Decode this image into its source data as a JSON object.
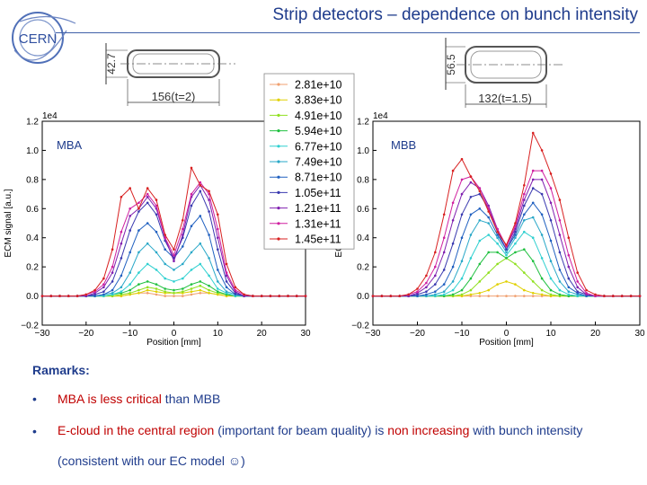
{
  "slide": {
    "title": "Strip detectors – dependence on bunch intensity",
    "logo_text": "CERN",
    "remarks_heading": "Ramarks:",
    "bullets": [
      {
        "parts": [
          {
            "t": "MBA is less critical",
            "red": true
          },
          {
            "t": " than MBB",
            "red": false
          }
        ]
      },
      {
        "parts": [
          {
            "t": "E-cloud in the central region",
            "red": true
          },
          {
            "t": " (important for beam quality) is ",
            "red": false
          },
          {
            "t": "non increasing",
            "red": true
          },
          {
            "t": " with bunch intensity (consistent with our EC model ☺)",
            "red": false
          }
        ]
      }
    ],
    "colors": {
      "title": "#1f3c8c",
      "highlight": "#c00000"
    }
  },
  "diagrams": {
    "mba": {
      "height_label": "42.7",
      "width_label": "156(t=2)"
    },
    "mbb": {
      "height_label": "56.5",
      "width_label": "132(t=1.5)"
    }
  },
  "chart_data": [
    {
      "type": "line",
      "label": "MBA",
      "scale_note": "1e4",
      "xlabel": "Position [mm]",
      "ylabel": "ECM signal [a.u.]",
      "xlim": [
        -30,
        30
      ],
      "ylim": [
        -0.2,
        1.2
      ],
      "xticks": [
        -30,
        -20,
        -10,
        0,
        10,
        20,
        30
      ],
      "yticks": [
        -0.2,
        0.0,
        0.2,
        0.4,
        0.6,
        0.8,
        1.0,
        1.2
      ],
      "legend_position": "top-right",
      "x": [
        -30,
        -28,
        -26,
        -24,
        -22,
        -20,
        -18,
        -16,
        -14,
        -12,
        -10,
        -8,
        -6,
        -4,
        -2,
        0,
        2,
        4,
        6,
        8,
        10,
        12,
        14,
        16,
        18,
        20,
        22,
        24,
        26,
        28,
        30
      ],
      "series": [
        {
          "name": "2.81e+10",
          "color": "#f0a070",
          "values": [
            0,
            0,
            0,
            0,
            0,
            0,
            0,
            0,
            0,
            0,
            0.01,
            0.02,
            0.02,
            0.01,
            0,
            0,
            0,
            0.01,
            0.02,
            0.02,
            0.01,
            0,
            0,
            0,
            0,
            0,
            0,
            0,
            0,
            0,
            0
          ]
        },
        {
          "name": "3.83e+10",
          "color": "#e0d000",
          "values": [
            0,
            0,
            0,
            0,
            0,
            0,
            0,
            0,
            0,
            0,
            0.01,
            0.02,
            0.04,
            0.03,
            0.02,
            0.02,
            0.02,
            0.03,
            0.04,
            0.02,
            0.01,
            0,
            0,
            0,
            0,
            0,
            0,
            0,
            0,
            0,
            0
          ]
        },
        {
          "name": "4.91e+10",
          "color": "#90e020",
          "values": [
            0,
            0,
            0,
            0,
            0,
            0,
            0,
            0,
            0,
            0.01,
            0.02,
            0.04,
            0.06,
            0.05,
            0.03,
            0.02,
            0.03,
            0.05,
            0.07,
            0.04,
            0.02,
            0.01,
            0,
            0,
            0,
            0,
            0,
            0,
            0,
            0,
            0
          ]
        },
        {
          "name": "5.94e+10",
          "color": "#20c040",
          "values": [
            0,
            0,
            0,
            0,
            0,
            0,
            0,
            0,
            0.01,
            0.02,
            0.04,
            0.08,
            0.1,
            0.08,
            0.05,
            0.04,
            0.05,
            0.08,
            0.1,
            0.07,
            0.03,
            0.01,
            0,
            0,
            0,
            0,
            0,
            0,
            0,
            0,
            0
          ]
        },
        {
          "name": "6.77e+10",
          "color": "#30d0d0",
          "values": [
            0,
            0,
            0,
            0,
            0,
            0,
            0,
            0,
            0.01,
            0.03,
            0.08,
            0.16,
            0.22,
            0.18,
            0.12,
            0.1,
            0.12,
            0.18,
            0.22,
            0.14,
            0.05,
            0.02,
            0,
            0,
            0,
            0,
            0,
            0,
            0,
            0,
            0
          ]
        },
        {
          "name": "7.49e+10",
          "color": "#2aa8c8",
          "values": [
            0,
            0,
            0,
            0,
            0,
            0,
            0,
            0.01,
            0.02,
            0.06,
            0.16,
            0.3,
            0.36,
            0.3,
            0.22,
            0.18,
            0.22,
            0.3,
            0.36,
            0.26,
            0.1,
            0.03,
            0.01,
            0,
            0,
            0,
            0,
            0,
            0,
            0,
            0
          ]
        },
        {
          "name": "8.71e+10",
          "color": "#2060c0",
          "values": [
            0,
            0,
            0,
            0,
            0,
            0,
            0,
            0.01,
            0.04,
            0.14,
            0.3,
            0.45,
            0.5,
            0.44,
            0.32,
            0.26,
            0.34,
            0.48,
            0.55,
            0.42,
            0.18,
            0.06,
            0.01,
            0,
            0,
            0,
            0,
            0,
            0,
            0,
            0
          ]
        },
        {
          "name": "1.05e+11",
          "color": "#3a3ab0",
          "values": [
            0,
            0,
            0,
            0,
            0,
            0,
            0.01,
            0.03,
            0.1,
            0.26,
            0.45,
            0.58,
            0.64,
            0.56,
            0.38,
            0.26,
            0.4,
            0.62,
            0.72,
            0.58,
            0.32,
            0.1,
            0.02,
            0,
            0,
            0,
            0,
            0,
            0,
            0,
            0
          ]
        },
        {
          "name": "1.21e+11",
          "color": "#8020b0",
          "values": [
            0,
            0,
            0,
            0,
            0,
            0,
            0.02,
            0.06,
            0.16,
            0.36,
            0.55,
            0.6,
            0.68,
            0.6,
            0.4,
            0.24,
            0.42,
            0.68,
            0.76,
            0.66,
            0.4,
            0.14,
            0.03,
            0,
            0,
            0,
            0,
            0,
            0,
            0,
            0
          ]
        },
        {
          "name": "1.31e+11",
          "color": "#d020a0",
          "values": [
            0,
            0,
            0,
            0,
            0,
            0.01,
            0.03,
            0.08,
            0.2,
            0.44,
            0.6,
            0.64,
            0.7,
            0.62,
            0.4,
            0.28,
            0.46,
            0.7,
            0.78,
            0.7,
            0.46,
            0.16,
            0.04,
            0.01,
            0,
            0,
            0,
            0,
            0,
            0,
            0
          ]
        },
        {
          "name": "1.45e+11",
          "color": "#d82020",
          "values": [
            0,
            0,
            0,
            0,
            0,
            0.01,
            0.04,
            0.12,
            0.32,
            0.68,
            0.74,
            0.6,
            0.74,
            0.66,
            0.42,
            0.32,
            0.52,
            0.88,
            0.76,
            0.72,
            0.56,
            0.22,
            0.06,
            0.01,
            0,
            0,
            0,
            0,
            0,
            0,
            0
          ]
        }
      ]
    },
    {
      "type": "line",
      "label": "MBB",
      "scale_note": "1e4",
      "xlabel": "Position [mm]",
      "ylabel": "ECM signal [a.u.]",
      "xlim": [
        -30,
        30
      ],
      "ylim": [
        -0.2,
        1.2
      ],
      "xticks": [
        -30,
        -20,
        -10,
        0,
        10,
        20,
        30
      ],
      "yticks": [
        -0.2,
        0.0,
        0.2,
        0.4,
        0.6,
        0.8,
        1.0,
        1.2
      ],
      "x": [
        -30,
        -28,
        -26,
        -24,
        -22,
        -20,
        -18,
        -16,
        -14,
        -12,
        -10,
        -8,
        -6,
        -4,
        -2,
        0,
        2,
        4,
        6,
        8,
        10,
        12,
        14,
        16,
        18,
        20,
        22,
        24,
        26,
        28,
        30
      ],
      "series": [
        {
          "name": "2.81e+10",
          "color": "#f0a070",
          "values": [
            0,
            0,
            0,
            0,
            0,
            0,
            0,
            0,
            0,
            0,
            0,
            0,
            0,
            0,
            0,
            0,
            0,
            0,
            0,
            0,
            0,
            0,
            0,
            0,
            0,
            0,
            0,
            0,
            0,
            0,
            0
          ]
        },
        {
          "name": "3.83e+10",
          "color": "#e0d000",
          "values": [
            0,
            0,
            0,
            0,
            0,
            0,
            0,
            0,
            0,
            0,
            0,
            0.01,
            0.02,
            0.04,
            0.08,
            0.1,
            0.08,
            0.04,
            0.02,
            0.01,
            0,
            0,
            0,
            0,
            0,
            0,
            0,
            0,
            0,
            0,
            0
          ]
        },
        {
          "name": "4.91e+10",
          "color": "#90e020",
          "values": [
            0,
            0,
            0,
            0,
            0,
            0,
            0,
            0,
            0,
            0,
            0.01,
            0.04,
            0.1,
            0.16,
            0.22,
            0.26,
            0.22,
            0.16,
            0.1,
            0.04,
            0.01,
            0,
            0,
            0,
            0,
            0,
            0,
            0,
            0,
            0,
            0
          ]
        },
        {
          "name": "5.94e+10",
          "color": "#20c040",
          "values": [
            0,
            0,
            0,
            0,
            0,
            0,
            0,
            0,
            0,
            0.01,
            0.04,
            0.12,
            0.22,
            0.3,
            0.3,
            0.26,
            0.3,
            0.32,
            0.24,
            0.12,
            0.04,
            0.01,
            0,
            0,
            0,
            0,
            0,
            0,
            0,
            0,
            0
          ]
        },
        {
          "name": "6.77e+10",
          "color": "#30d0d0",
          "values": [
            0,
            0,
            0,
            0,
            0,
            0,
            0,
            0,
            0.01,
            0.04,
            0.12,
            0.26,
            0.38,
            0.42,
            0.36,
            0.28,
            0.36,
            0.44,
            0.4,
            0.26,
            0.12,
            0.04,
            0.01,
            0,
            0,
            0,
            0,
            0,
            0,
            0,
            0
          ]
        },
        {
          "name": "7.49e+10",
          "color": "#2aa8c8",
          "values": [
            0,
            0,
            0,
            0,
            0,
            0,
            0,
            0.01,
            0.03,
            0.1,
            0.24,
            0.42,
            0.52,
            0.5,
            0.4,
            0.3,
            0.4,
            0.52,
            0.54,
            0.42,
            0.24,
            0.1,
            0.03,
            0.01,
            0,
            0,
            0,
            0,
            0,
            0,
            0
          ]
        },
        {
          "name": "8.71e+10",
          "color": "#2060c0",
          "values": [
            0,
            0,
            0,
            0,
            0,
            0,
            0.01,
            0.03,
            0.08,
            0.2,
            0.4,
            0.56,
            0.6,
            0.54,
            0.42,
            0.32,
            0.42,
            0.56,
            0.64,
            0.56,
            0.38,
            0.18,
            0.06,
            0.02,
            0,
            0,
            0,
            0,
            0,
            0,
            0
          ]
        },
        {
          "name": "1.05e+11",
          "color": "#3a3ab0",
          "values": [
            0,
            0,
            0,
            0,
            0,
            0.01,
            0.03,
            0.08,
            0.18,
            0.36,
            0.56,
            0.68,
            0.7,
            0.6,
            0.44,
            0.32,
            0.44,
            0.62,
            0.74,
            0.7,
            0.52,
            0.3,
            0.12,
            0.03,
            0.01,
            0,
            0,
            0,
            0,
            0,
            0
          ]
        },
        {
          "name": "1.21e+11",
          "color": "#8020b0",
          "values": [
            0,
            0,
            0,
            0,
            0,
            0.02,
            0.06,
            0.14,
            0.3,
            0.52,
            0.7,
            0.78,
            0.74,
            0.62,
            0.46,
            0.34,
            0.46,
            0.66,
            0.8,
            0.8,
            0.64,
            0.42,
            0.2,
            0.06,
            0.01,
            0,
            0,
            0,
            0,
            0,
            0
          ]
        },
        {
          "name": "1.31e+11",
          "color": "#d020a0",
          "values": [
            0,
            0,
            0,
            0,
            0.01,
            0.03,
            0.09,
            0.2,
            0.4,
            0.64,
            0.8,
            0.82,
            0.74,
            0.6,
            0.46,
            0.34,
            0.48,
            0.7,
            0.86,
            0.86,
            0.74,
            0.52,
            0.28,
            0.1,
            0.02,
            0,
            0,
            0,
            0,
            0,
            0
          ]
        },
        {
          "name": "1.45e+11",
          "color": "#d82020",
          "values": [
            0,
            0,
            0,
            0,
            0.01,
            0.05,
            0.14,
            0.3,
            0.56,
            0.86,
            0.94,
            0.82,
            0.72,
            0.58,
            0.44,
            0.35,
            0.5,
            0.76,
            1.12,
            1.0,
            0.84,
            0.66,
            0.4,
            0.16,
            0.04,
            0.01,
            0,
            0,
            0,
            0,
            0
          ]
        }
      ]
    }
  ]
}
